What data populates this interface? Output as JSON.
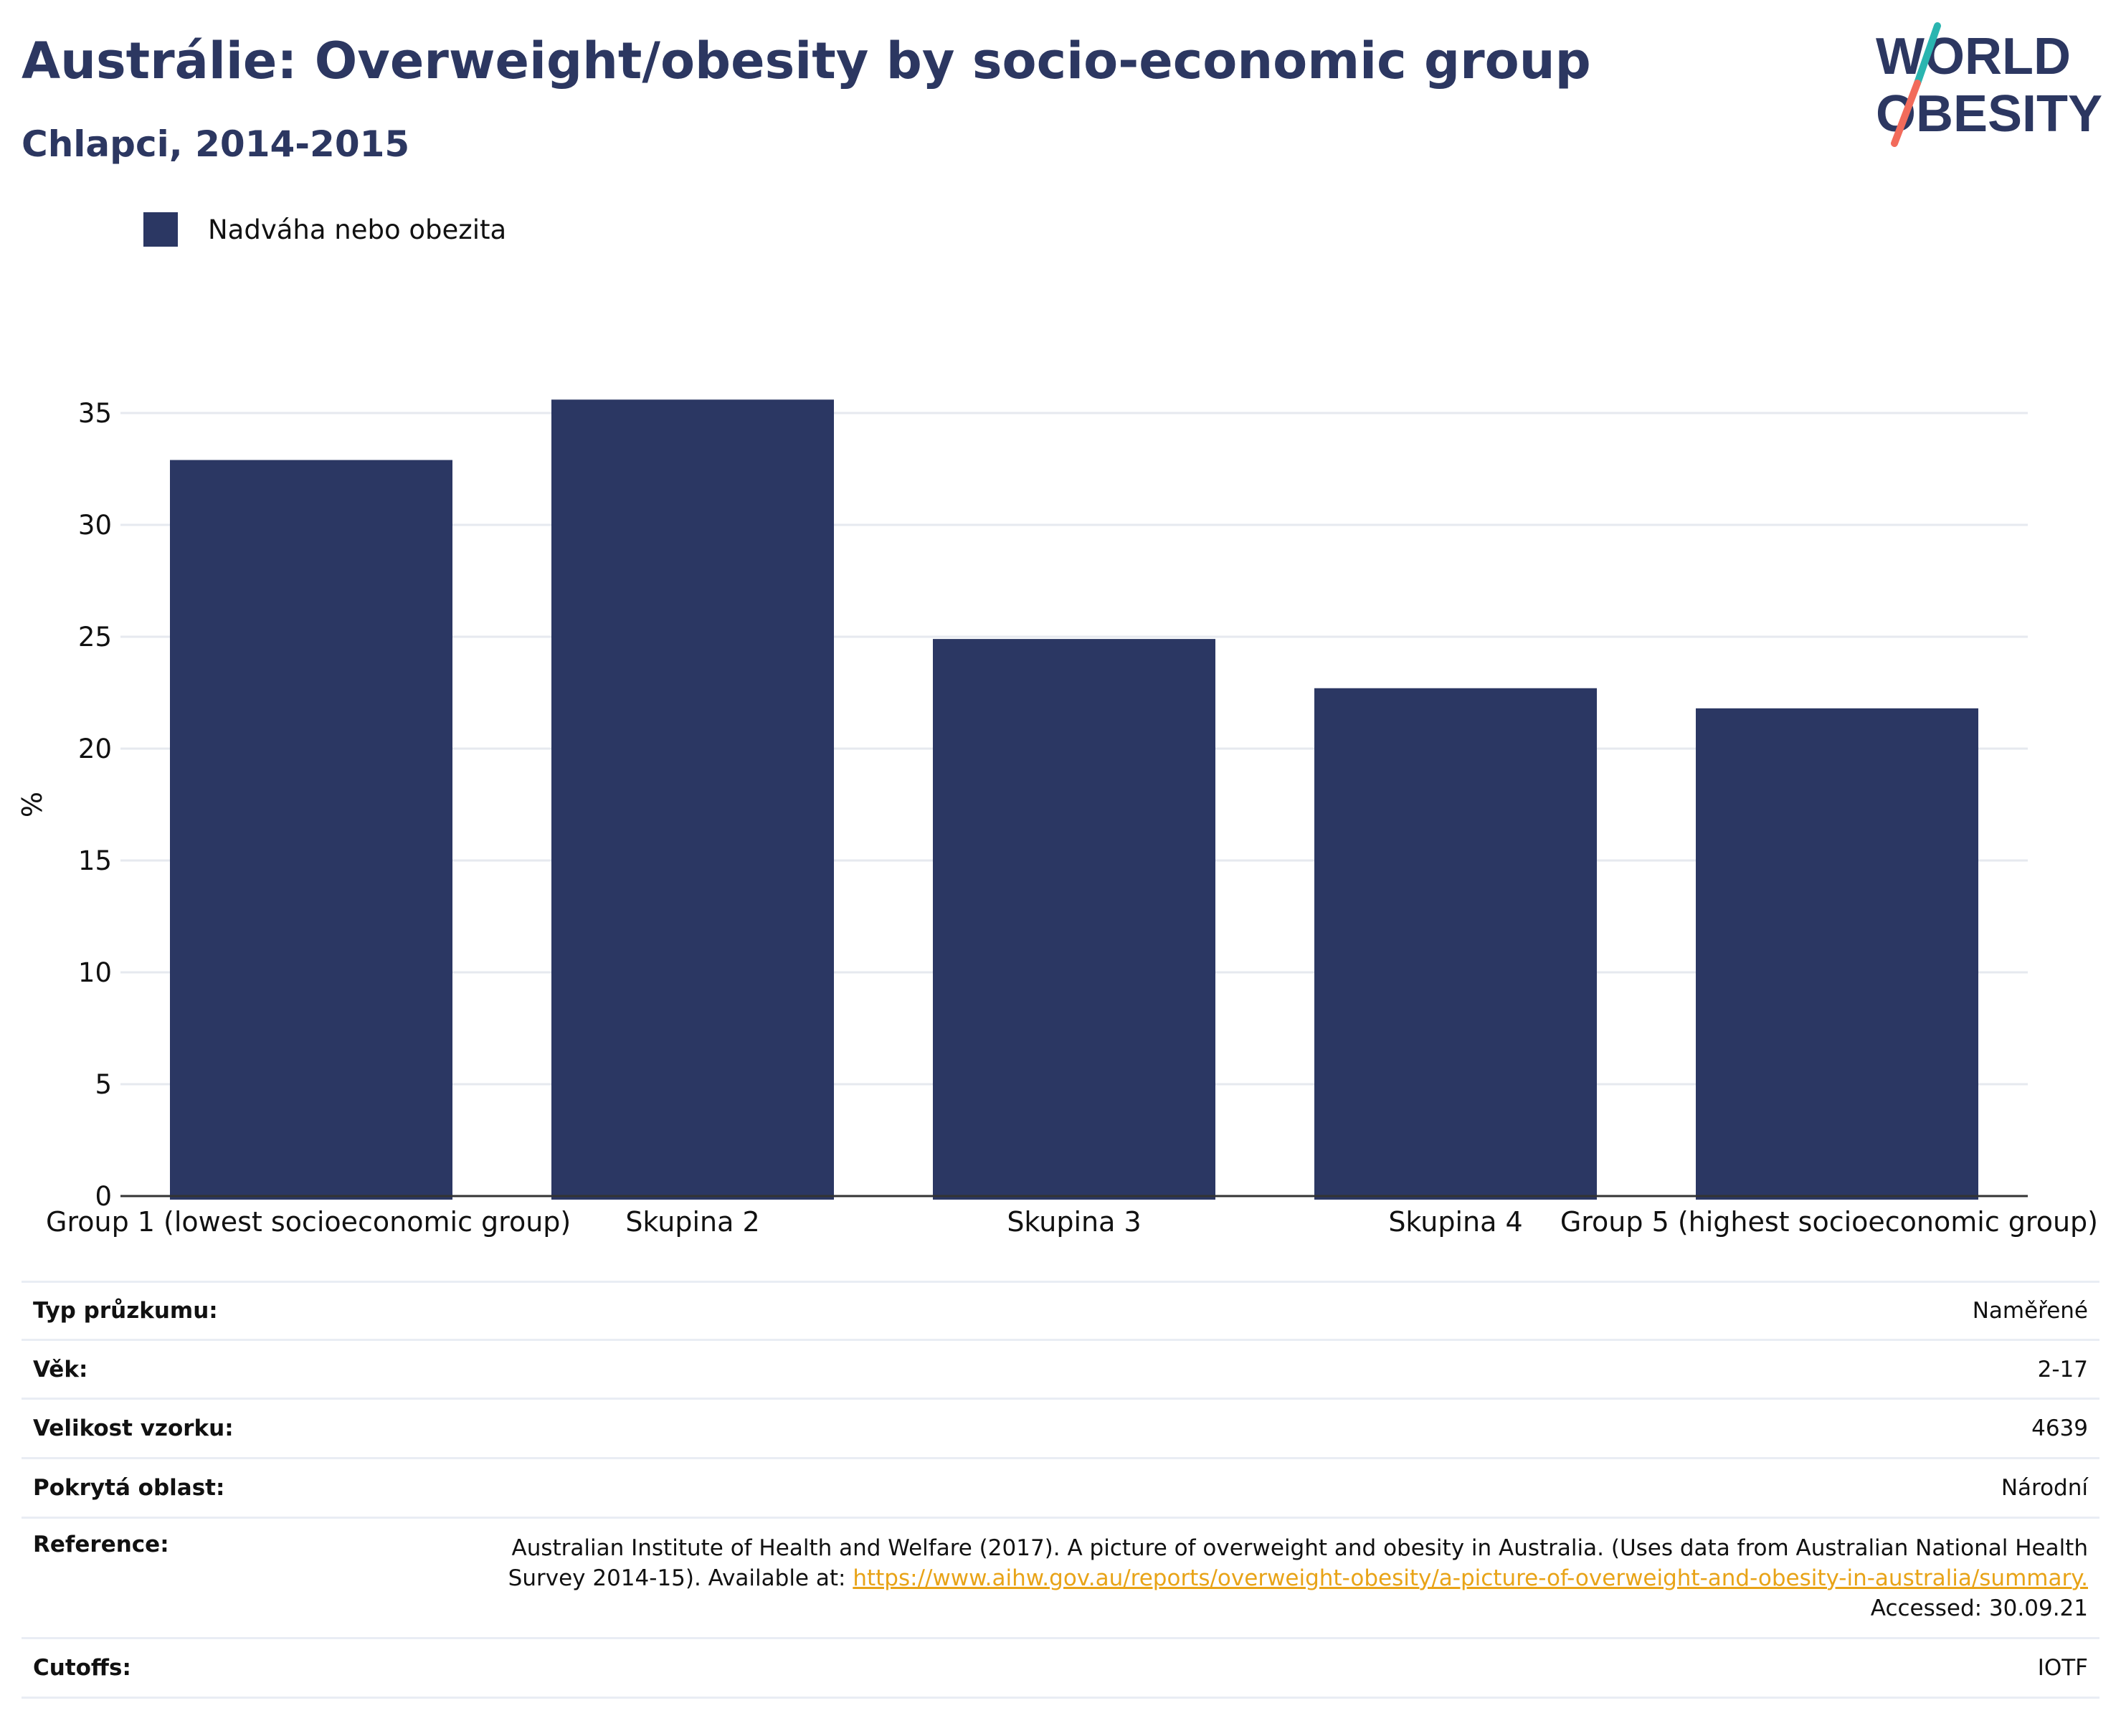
{
  "header": {
    "title": "Austrálie: Overweight/obesity by socio-economic group",
    "subtitle": "Chlapci, 2014-2015"
  },
  "logo": {
    "line1": "WORLD",
    "line2": "OBESITY"
  },
  "colors": {
    "bar": "#2b3763",
    "title": "#2c3761",
    "logo_teal": "#2ab5b0",
    "logo_coral": "#f26b5b",
    "link": "#e8a317"
  },
  "chart_data": {
    "type": "bar",
    "categories": [
      "Group 1 (lowest socioeconomic group)",
      "Skupina 2",
      "Skupina 3",
      "Skupina 4",
      "Group 5 (highest socioeconomic group)"
    ],
    "series": [
      {
        "name": "Nadváha nebo obezita",
        "values": [
          32.9,
          35.6,
          24.9,
          22.7,
          21.8
        ]
      }
    ],
    "ylabel": "%",
    "ylim": [
      0,
      35
    ],
    "yticks": [
      0,
      5,
      10,
      15,
      20,
      25,
      30,
      35
    ],
    "grid": true,
    "legend": "top-left"
  },
  "info": [
    {
      "label": "Typ průzkumu:",
      "value": "Naměřené"
    },
    {
      "label": "Věk:",
      "value": "2-17"
    },
    {
      "label": "Velikost vzorku:",
      "value": "4639"
    },
    {
      "label": "Pokrytá oblast:",
      "value": "Národní"
    },
    {
      "label": "Reference:",
      "value": "Australian Institute of Health and Welfare (2017). A picture of overweight and obesity in Australia. (Uses data from Australian National Health Survey 2014-15). Available at:",
      "link": "https://www.aihw.gov.au/reports/overweight-obesity/a-picture-of-overweight-and-obesity-in-australia/summary.",
      "suffix": "Accessed: 30.09.21"
    },
    {
      "label": "Cutoffs:",
      "value": "IOTF"
    }
  ]
}
